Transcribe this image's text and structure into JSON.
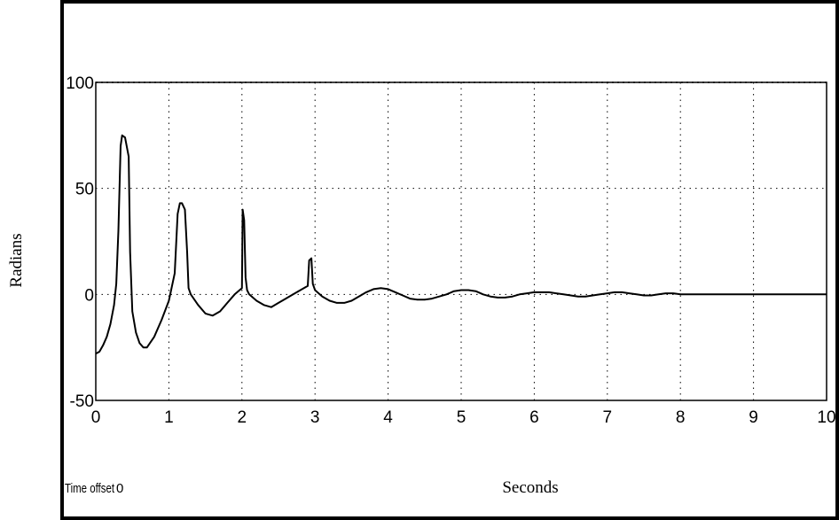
{
  "chart_data": {
    "type": "line",
    "title": "",
    "xlabel": "Seconds",
    "ylabel": "Radians",
    "xlim": [
      0,
      10
    ],
    "ylim": [
      -50,
      100
    ],
    "x_ticks": [
      0,
      1,
      2,
      3,
      4,
      5,
      6,
      7,
      8,
      9,
      10
    ],
    "y_ticks": [
      -50,
      0,
      50,
      100
    ],
    "grid": true,
    "time_offset_label": "Time offset",
    "time_offset_value": "0",
    "series": [
      {
        "color": "#000000",
        "x": [
          0,
          0.05,
          0.1,
          0.15,
          0.2,
          0.25,
          0.28,
          0.31,
          0.34,
          0.36,
          0.4,
          0.45,
          0.47,
          0.5,
          0.55,
          0.6,
          0.65,
          0.7,
          0.8,
          0.9,
          1.0,
          1.08,
          1.12,
          1.15,
          1.18,
          1.22,
          1.25,
          1.27,
          1.3,
          1.4,
          1.5,
          1.6,
          1.7,
          1.8,
          1.9,
          2.0,
          2.01,
          2.03,
          2.05,
          2.07,
          2.1,
          2.2,
          2.3,
          2.4,
          2.5,
          2.6,
          2.7,
          2.8,
          2.9,
          2.92,
          2.95,
          2.97,
          3.0,
          3.1,
          3.2,
          3.3,
          3.4,
          3.5,
          3.6,
          3.7,
          3.8,
          3.9,
          4.0,
          4.1,
          4.2,
          4.3,
          4.4,
          4.5,
          4.6,
          4.7,
          4.8,
          4.9,
          5.0,
          5.1,
          5.2,
          5.3,
          5.4,
          5.5,
          5.6,
          5.7,
          5.8,
          5.9,
          6.0,
          6.1,
          6.2,
          6.3,
          6.4,
          6.5,
          6.6,
          6.7,
          6.8,
          6.9,
          7.0,
          7.1,
          7.2,
          7.3,
          7.4,
          7.5,
          7.6,
          7.7,
          7.8,
          7.9,
          8.0,
          8.2,
          8.4,
          8.6,
          8.8,
          9.0,
          9.2,
          9.4,
          9.6,
          9.8,
          10.0
        ],
        "values": [
          -28,
          -27,
          -24,
          -20,
          -14,
          -5,
          5,
          30,
          70,
          75,
          74,
          65,
          20,
          -8,
          -18,
          -23,
          -25,
          -25,
          -20,
          -12,
          -3,
          10,
          38,
          43,
          43,
          40,
          20,
          3,
          0,
          -5,
          -9,
          -10,
          -8,
          -4,
          0,
          3,
          40,
          35,
          8,
          2,
          0,
          -3,
          -5,
          -6,
          -4,
          -2,
          0,
          2,
          4,
          16,
          17,
          5,
          2,
          -1,
          -3,
          -4,
          -4,
          -3,
          -1,
          1,
          2.5,
          3,
          2.5,
          1,
          -0.5,
          -2,
          -2.5,
          -2.5,
          -2,
          -1,
          0,
          1.5,
          2,
          2,
          1.5,
          0,
          -1,
          -1.5,
          -1.5,
          -1,
          0,
          0.5,
          1,
          1,
          1,
          0.5,
          0,
          -0.5,
          -1,
          -1,
          -0.5,
          0,
          0.5,
          1,
          1,
          0.5,
          0,
          -0.5,
          -0.5,
          0,
          0.5,
          0.5,
          0,
          0,
          0,
          0,
          0,
          0,
          0,
          0,
          0,
          0,
          0
        ]
      }
    ]
  }
}
